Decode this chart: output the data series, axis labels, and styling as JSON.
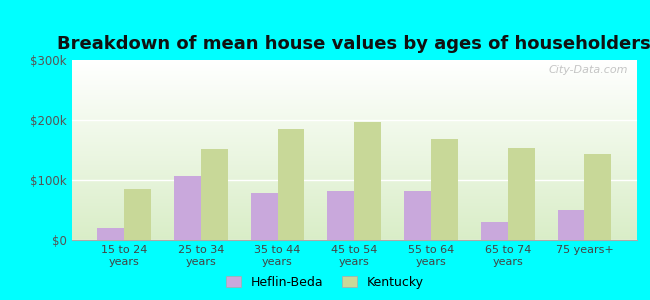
{
  "title": "Breakdown of mean house values by ages of householders",
  "categories": [
    "15 to 24\nyears",
    "25 to 34\nyears",
    "35 to 44\nyears",
    "45 to 54\nyears",
    "55 to 64\nyears",
    "65 to 74\nyears",
    "75 years+"
  ],
  "heflin_beda": [
    20000,
    107000,
    78000,
    82000,
    82000,
    30000,
    50000
  ],
  "kentucky": [
    85000,
    152000,
    185000,
    197000,
    168000,
    153000,
    143000
  ],
  "heflin_color": "#c9a8dc",
  "kentucky_color": "#c8d898",
  "background_color": "#00ffff",
  "ylim": [
    0,
    300000
  ],
  "yticks": [
    0,
    100000,
    200000,
    300000
  ],
  "ytick_labels": [
    "$0",
    "$100k",
    "$200k",
    "$300k"
  ],
  "title_fontsize": 13,
  "watermark": "City-Data.com",
  "legend_heflin": "Heflin-Beda",
  "legend_kentucky": "Kentucky",
  "bar_width": 0.35
}
